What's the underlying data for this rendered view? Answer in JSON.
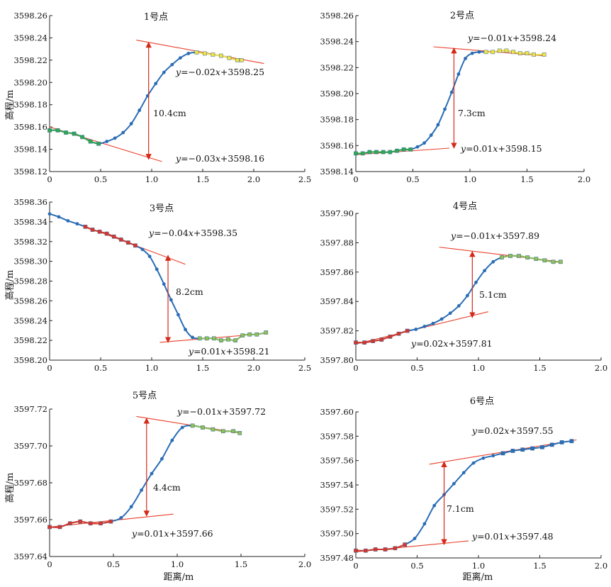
{
  "figure": {
    "xlabel": "距离/m",
    "ylabel": "高程/m"
  },
  "colors": {
    "curve": "#2a6db5",
    "fit_line": "#e8402a",
    "arrow": "#d42a1a",
    "marker_green": "#2fa84f",
    "marker_yellow": "#f0e24a",
    "marker_red": "#d8352a",
    "marker_olive": "#8fbf5a",
    "marker_blue": "#2a6db5"
  },
  "chart_data": [
    {
      "type": "line",
      "title": "1号点",
      "xlim": [
        0,
        2.5
      ],
      "ylim": [
        3598.12,
        3598.26
      ],
      "xticks": [
        "0",
        "0.5",
        "1.0",
        "1.5",
        "2.0",
        "2.5"
      ],
      "yticks": [
        "3598.12",
        "3598.14",
        "3598.16",
        "3598.18",
        "3598.20",
        "3598.22",
        "3598.24",
        "3598.26"
      ],
      "x": [
        0,
        0.08,
        0.16,
        0.24,
        0.32,
        0.4,
        0.48,
        0.56,
        0.64,
        0.72,
        0.8,
        0.88,
        0.96,
        1.04,
        1.12,
        1.2,
        1.28,
        1.36,
        1.44,
        1.52,
        1.6,
        1.68,
        1.76,
        1.84,
        1.88
      ],
      "y": [
        3598.157,
        3598.157,
        3598.155,
        3598.154,
        3598.151,
        3598.147,
        3598.145,
        3598.147,
        3598.15,
        3598.155,
        3598.163,
        3598.175,
        3598.188,
        3598.199,
        3598.209,
        3598.216,
        3598.222,
        3598.226,
        3598.227,
        3598.226,
        3598.225,
        3598.224,
        3598.222,
        3598.22,
        3598.22
      ],
      "lower_markers": {
        "color": "marker_green",
        "x": [
          0,
          0.08,
          0.16,
          0.24,
          0.32,
          0.4,
          0.48
        ]
      },
      "upper_markers": {
        "color": "marker_yellow",
        "x": [
          1.44,
          1.52,
          1.6,
          1.68,
          1.76,
          1.84,
          1.88
        ]
      },
      "fits": [
        {
          "label": "y=−0.02x+3598.25",
          "x": [
            0.85,
            2.1
          ],
          "y": [
            3598.238,
            3598.217
          ]
        },
        {
          "label": "y=−0.03x+3598.16",
          "x": [
            0,
            1.1
          ],
          "y": [
            3598.16,
            3598.129
          ]
        }
      ],
      "arrow": {
        "x": 0.97,
        "y_top": 3598.236,
        "y_bottom": 3598.131
      },
      "difference": "10.4cm"
    },
    {
      "type": "line",
      "title": "2号点",
      "xlim": [
        0,
        2.0
      ],
      "ylim": [
        3598.14,
        3598.26
      ],
      "xticks": [
        "0",
        "0.5",
        "1.0",
        "1.5",
        "2.0"
      ],
      "yticks": [
        "3598.14",
        "3598.16",
        "3598.18",
        "3598.20",
        "3598.22",
        "3598.24",
        "3598.26"
      ],
      "x": [
        0,
        0.06,
        0.12,
        0.18,
        0.24,
        0.3,
        0.36,
        0.42,
        0.48,
        0.54,
        0.6,
        0.66,
        0.72,
        0.78,
        0.84,
        0.9,
        0.96,
        1.02,
        1.08,
        1.14,
        1.2,
        1.26,
        1.32,
        1.38,
        1.44,
        1.5,
        1.56,
        1.65
      ],
      "y": [
        3598.154,
        3598.154,
        3598.155,
        3598.155,
        3598.155,
        3598.155,
        3598.156,
        3598.157,
        3598.157,
        3598.159,
        3598.162,
        3598.168,
        3598.176,
        3598.188,
        3598.201,
        3598.215,
        3598.227,
        3598.231,
        3598.232,
        3598.232,
        3598.232,
        3598.233,
        3598.233,
        3598.232,
        3598.231,
        3598.231,
        3598.23,
        3598.23
      ],
      "lower_markers": {
        "color": "marker_green",
        "x": [
          0,
          0.06,
          0.12,
          0.18,
          0.24,
          0.3,
          0.36,
          0.42,
          0.48
        ]
      },
      "upper_markers": {
        "color": "marker_yellow",
        "x": [
          1.14,
          1.2,
          1.26,
          1.32,
          1.38,
          1.44,
          1.5,
          1.56,
          1.65
        ]
      },
      "fits": [
        {
          "label": "y=−0.01x+3598.24",
          "x": [
            0.68,
            1.65
          ],
          "y": [
            3598.236,
            3598.229
          ]
        },
        {
          "label": "y=0.01x+3598.15",
          "x": [
            0,
            0.82
          ],
          "y": [
            3598.153,
            3598.158
          ]
        }
      ],
      "arrow": {
        "x": 0.86,
        "y_top": 3598.235,
        "y_bottom": 3598.158
      },
      "difference": "7.3cm"
    },
    {
      "type": "line",
      "title": "3号点",
      "xlim": [
        0,
        2.5
      ],
      "ylim": [
        3598.2,
        3598.36
      ],
      "xticks": [
        "0",
        "0.5",
        "1.0",
        "1.5",
        "2.0",
        "2.5"
      ],
      "yticks": [
        "3598.20",
        "3598.22",
        "3598.24",
        "3598.26",
        "3598.28",
        "3598.30",
        "3598.32",
        "3598.34",
        "3598.36"
      ],
      "x": [
        0,
        0.09,
        0.18,
        0.27,
        0.35,
        0.42,
        0.49,
        0.56,
        0.63,
        0.7,
        0.77,
        0.84,
        0.91,
        0.98,
        1.05,
        1.12,
        1.19,
        1.26,
        1.33,
        1.4,
        1.47,
        1.54,
        1.61,
        1.68,
        1.75,
        1.82,
        1.89,
        1.96,
        2.03,
        2.12
      ],
      "y": [
        3598.348,
        3598.345,
        3598.341,
        3598.338,
        3598.335,
        3598.332,
        3598.33,
        3598.328,
        3598.325,
        3598.322,
        3598.319,
        3598.316,
        3598.312,
        3598.305,
        3598.292,
        3598.277,
        3598.261,
        3598.246,
        3598.231,
        3598.223,
        3598.222,
        3598.222,
        3598.222,
        3598.22,
        3598.221,
        3598.22,
        3598.225,
        3598.226,
        3598.226,
        3598.228
      ],
      "lower_markers": {
        "color": "marker_olive",
        "x": [
          1.47,
          1.54,
          1.61,
          1.68,
          1.75,
          1.82,
          1.89,
          1.96,
          2.03,
          2.12
        ]
      },
      "upper_markers": {
        "color": "marker_red",
        "x": [
          0.35,
          0.42,
          0.49,
          0.56,
          0.63,
          0.7,
          0.77,
          0.84
        ]
      },
      "fits": [
        {
          "label": "y=−0.04x+3598.35",
          "x": [
            0.33,
            1.33
          ],
          "y": [
            3598.336,
            3598.297
          ]
        },
        {
          "label": "y=0.01x+3598.21",
          "x": [
            1.08,
            2.12
          ],
          "y": [
            3598.218,
            3598.227
          ]
        }
      ],
      "arrow": {
        "x": 1.16,
        "y_top": 3598.306,
        "y_bottom": 3598.218
      },
      "difference": "8.2cm"
    },
    {
      "type": "line",
      "title": "4号点",
      "xlim": [
        0,
        2.0
      ],
      "ylim": [
        3597.8,
        3597.9
      ],
      "xticks": [
        "0",
        "0.5",
        "1.0",
        "1.5",
        "2.0"
      ],
      "yticks": [
        "3597.80",
        "3597.82",
        "3597.84",
        "3597.86",
        "3597.88",
        "3597.90"
      ],
      "x": [
        0,
        0.07,
        0.14,
        0.21,
        0.28,
        0.35,
        0.42,
        0.49,
        0.56,
        0.63,
        0.7,
        0.77,
        0.84,
        0.91,
        0.98,
        1.05,
        1.12,
        1.19,
        1.26,
        1.33,
        1.4,
        1.47,
        1.54,
        1.61,
        1.67
      ],
      "y": [
        3597.812,
        3597.812,
        3597.813,
        3597.814,
        3597.816,
        3597.818,
        3597.82,
        3597.821,
        3597.823,
        3597.825,
        3597.828,
        3597.832,
        3597.837,
        3597.844,
        3597.853,
        3597.861,
        3597.867,
        3597.87,
        3597.871,
        3597.871,
        3597.87,
        3597.869,
        3597.868,
        3597.867,
        3597.867
      ],
      "lower_markers": {
        "color": "marker_red",
        "x": [
          0,
          0.07,
          0.14,
          0.21,
          0.28,
          0.35,
          0.42
        ]
      },
      "upper_markers": {
        "color": "marker_olive",
        "x": [
          1.19,
          1.26,
          1.33,
          1.4,
          1.47,
          1.54,
          1.61,
          1.67
        ]
      },
      "fits": [
        {
          "label": "y=−0.01x+3597.89",
          "x": [
            0.68,
            1.67
          ],
          "y": [
            3597.877,
            3597.867
          ]
        },
        {
          "label": "y=0.02x+3597.81",
          "x": [
            0,
            1.08
          ],
          "y": [
            3597.811,
            3597.833
          ]
        }
      ],
      "arrow": {
        "x": 0.95,
        "y_top": 3597.874,
        "y_bottom": 3597.829
      },
      "difference": "5.1cm"
    },
    {
      "type": "line",
      "title": "5号点",
      "xlim": [
        0,
        2.0
      ],
      "ylim": [
        3597.64,
        3597.72
      ],
      "xticks": [
        "0",
        "0.5",
        "1.0",
        "1.5",
        "2.0"
      ],
      "yticks": [
        "3597.64",
        "3597.66",
        "3597.68",
        "3597.70",
        "3597.72"
      ],
      "x": [
        0,
        0.08,
        0.16,
        0.24,
        0.32,
        0.4,
        0.48,
        0.56,
        0.64,
        0.72,
        0.8,
        0.88,
        0.96,
        1.04,
        1.12,
        1.2,
        1.28,
        1.36,
        1.44,
        1.49
      ],
      "y": [
        3597.656,
        3597.656,
        3597.658,
        3597.659,
        3597.658,
        3597.658,
        3597.659,
        3597.661,
        3597.667,
        3597.676,
        3597.685,
        3597.693,
        3597.703,
        3597.71,
        3597.711,
        3597.71,
        3597.709,
        3597.708,
        3597.708,
        3597.707
      ],
      "lower_markers": {
        "color": "marker_red",
        "x": [
          0,
          0.08,
          0.16,
          0.24,
          0.32,
          0.4,
          0.48
        ]
      },
      "upper_markers": {
        "color": "marker_olive",
        "x": [
          1.12,
          1.2,
          1.28,
          1.36,
          1.44,
          1.49
        ]
      },
      "fits": [
        {
          "label": "y=−0.01x+3597.72",
          "x": [
            0.68,
            1.49
          ],
          "y": [
            3597.716,
            3597.707
          ]
        },
        {
          "label": "y=0.01x+3597.66",
          "x": [
            0,
            0.97
          ],
          "y": [
            3597.656,
            3597.663
          ]
        }
      ],
      "arrow": {
        "x": 0.76,
        "y_top": 3597.715,
        "y_bottom": 3597.662
      },
      "difference": "4.4cm"
    },
    {
      "type": "line",
      "title": "6号点",
      "xlim": [
        0,
        2.0
      ],
      "ylim": [
        3597.48,
        3597.6
      ],
      "xticks": [
        "0",
        "0.5",
        "1.0",
        "1.5",
        "2.0"
      ],
      "yticks": [
        "3597.48",
        "3597.50",
        "3597.52",
        "3597.54",
        "3597.56",
        "3597.58",
        "3597.60"
      ],
      "x": [
        0,
        0.08,
        0.16,
        0.24,
        0.32,
        0.4,
        0.48,
        0.56,
        0.64,
        0.72,
        0.8,
        0.88,
        0.96,
        1.04,
        1.12,
        1.2,
        1.28,
        1.36,
        1.44,
        1.52,
        1.6,
        1.68,
        1.76
      ],
      "y": [
        3597.486,
        3597.486,
        3597.487,
        3597.487,
        3597.488,
        3597.491,
        3597.496,
        3597.508,
        3597.523,
        3597.532,
        3597.541,
        3597.55,
        3597.558,
        3597.562,
        3597.564,
        3597.566,
        3597.568,
        3597.569,
        3597.57,
        3597.571,
        3597.573,
        3597.575,
        3597.576
      ],
      "lower_markers": {
        "color": "marker_red",
        "x": [
          0,
          0.08,
          0.16,
          0.24,
          0.32,
          0.4
        ]
      },
      "upper_markers": {
        "color": "marker_blue",
        "x": [
          1.2,
          1.28,
          1.36,
          1.44,
          1.52,
          1.6,
          1.68,
          1.76
        ]
      },
      "fits": [
        {
          "label": "y=0.02x+3597.55",
          "x": [
            0.6,
            1.8
          ],
          "y": [
            3597.557,
            3597.577
          ]
        },
        {
          "label": "y=0.01x+3597.48",
          "x": [
            0,
            0.92
          ],
          "y": [
            3597.485,
            3597.494
          ]
        }
      ],
      "arrow": {
        "x": 0.72,
        "y_top": 3597.559,
        "y_bottom": 3597.491
      },
      "difference": "7.1cm"
    }
  ]
}
